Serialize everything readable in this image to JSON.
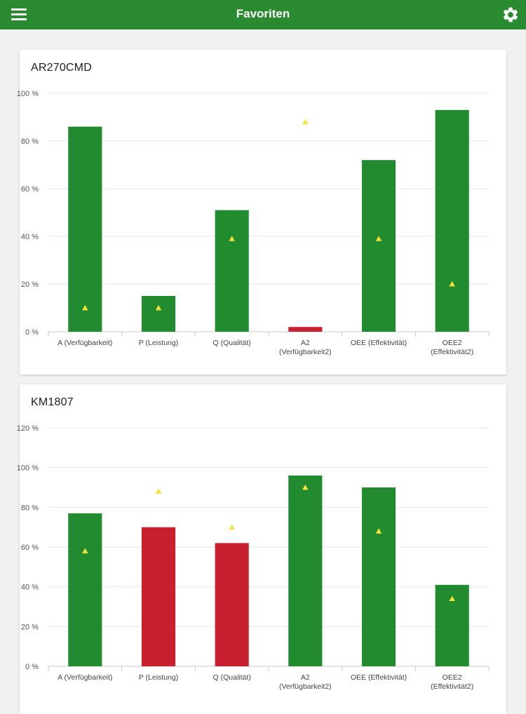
{
  "header": {
    "title": "Favoriten",
    "menu_icon": "hamburger-menu-icon",
    "settings_icon": "gear-icon",
    "background_color": "#2a8a2f"
  },
  "colors": {
    "good": "#228b30",
    "bad": "#c8202f",
    "marker": "#f5e13a",
    "grid": "#e6e6ee"
  },
  "chart_data": [
    {
      "type": "bar",
      "title": "AR270CMD",
      "categories": [
        [
          "A (Verfügbarkeit)"
        ],
        [
          "P (Leistung)"
        ],
        [
          "Q (Qualität)"
        ],
        [
          "A2",
          "(Verfügbarkeit2)"
        ],
        [
          "OEE (Effektivität)"
        ],
        [
          "OEE2",
          "(Effektivität2)"
        ]
      ],
      "values": [
        86,
        15,
        51,
        2,
        72,
        93
      ],
      "status": [
        "good",
        "good",
        "good",
        "bad",
        "good",
        "good"
      ],
      "targets": [
        10,
        10,
        39,
        88,
        39,
        20
      ],
      "ylim": [
        0,
        100
      ],
      "yticks": [
        0,
        20,
        40,
        60,
        80,
        100
      ],
      "ytick_labels": [
        "0 %",
        "20 %",
        "40 %",
        "60 %",
        "80 %",
        "100 %"
      ],
      "grid": true,
      "legend": "none"
    },
    {
      "type": "bar",
      "title": "KM1807",
      "categories": [
        [
          "A (Verfügbarkeit)"
        ],
        [
          "P (Leistung)"
        ],
        [
          "Q (Qualität)"
        ],
        [
          "A2",
          "(Verfügbarkeit2)"
        ],
        [
          "OEE (Effektivität)"
        ],
        [
          "OEE2",
          "(Effektivität2)"
        ]
      ],
      "values": [
        77,
        70,
        62,
        96,
        90,
        41
      ],
      "status": [
        "good",
        "bad",
        "bad",
        "good",
        "good",
        "good"
      ],
      "targets": [
        58,
        88,
        70,
        90,
        68,
        34
      ],
      "ylim": [
        0,
        120
      ],
      "yticks": [
        0,
        20,
        40,
        60,
        80,
        100,
        120
      ],
      "ytick_labels": [
        "0 %",
        "20 %",
        "40 %",
        "60 %",
        "80 %",
        "100 %",
        "120 %"
      ],
      "grid": true,
      "legend": "none"
    }
  ]
}
